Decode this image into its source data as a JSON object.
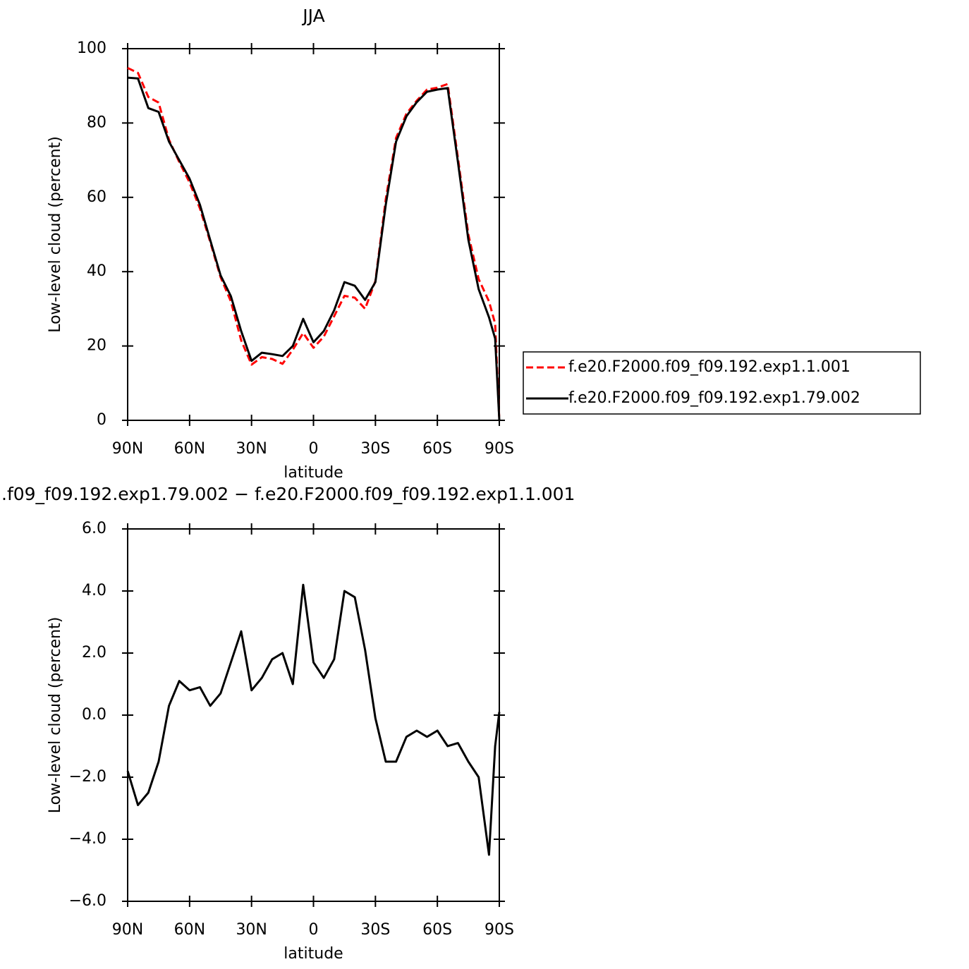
{
  "chart_data": [
    {
      "type": "line",
      "title": "JJA",
      "x_label": "latitude",
      "y_label": "Low-level cloud (percent)",
      "x": [
        90,
        85,
        80,
        75,
        70,
        65,
        60,
        55,
        50,
        45,
        40,
        35,
        30,
        25,
        20,
        15,
        10,
        5,
        0,
        -5,
        -10,
        -15,
        -20,
        -25,
        -30,
        -35,
        -40,
        -45,
        -50,
        -55,
        -60,
        -65,
        -70,
        -75,
        -80,
        -85,
        -88,
        -90
      ],
      "series": [
        {
          "name": "f.e20.F2000.f09_f09.192.exp1.1.001",
          "color": "#ff0000",
          "line_style": "dashed",
          "values": [
            94.8,
            93.5,
            87,
            85.5,
            75.5,
            69.5,
            64,
            57,
            48,
            38.5,
            32,
            21.5,
            15,
            17,
            16.5,
            15.2,
            19,
            23.5,
            19.5,
            22.5,
            28,
            33.5,
            33,
            30,
            37.5,
            59.5,
            76,
            82.5,
            86,
            89,
            89.5,
            90.5,
            70.5,
            50,
            38,
            32,
            26,
            0
          ]
        },
        {
          "name": "f.e20.F2000.f09_f09.192.exp1.79.002",
          "color": "#000000",
          "line_style": "solid",
          "values": [
            92.2,
            92,
            84,
            83,
            75,
            70,
            65,
            58,
            48.5,
            39,
            33.4,
            24,
            16,
            18.2,
            17.8,
            17.3,
            20,
            27.3,
            21,
            24,
            29.6,
            37.2,
            36.2,
            32.4,
            37.2,
            58,
            75,
            81.8,
            85.6,
            88.4,
            89,
            89.4,
            69.4,
            48.6,
            35.3,
            27.7,
            22,
            0
          ]
        }
      ],
      "xlim": [
        90,
        -90
      ],
      "xticks": [
        {
          "value": 90,
          "label": "90N"
        },
        {
          "value": 60,
          "label": "60N"
        },
        {
          "value": 30,
          "label": "30N"
        },
        0,
        {
          "value": -30,
          "label": "30S"
        },
        {
          "value": -60,
          "label": "60S"
        },
        {
          "value": -90,
          "label": "90S"
        }
      ],
      "ylim": [
        0,
        100
      ],
      "yticks": [
        0,
        20,
        40,
        60,
        80,
        100
      ],
      "legend": "right"
    },
    {
      "type": "line",
      "title": ".f09_f09.192.exp1.79.002 − f.e20.F2000.f09_f09.192.exp1.1.001",
      "x_label": "latitude",
      "y_label": "Low-level cloud (percent)",
      "x": [
        90,
        85,
        80,
        75,
        70,
        65,
        60,
        55,
        50,
        45,
        40,
        35,
        30,
        25,
        20,
        15,
        10,
        5,
        0,
        -5,
        -10,
        -15,
        -20,
        -25,
        -30,
        -35,
        -40,
        -45,
        -50,
        -55,
        -60,
        -65,
        -70,
        -75,
        -80,
        -85,
        -88,
        -90
      ],
      "values": [
        -1.8,
        -2.9,
        -2.5,
        -1.5,
        0.3,
        1.1,
        0.8,
        0.9,
        0.3,
        0.7,
        1.7,
        2.7,
        0.8,
        1.2,
        1.8,
        2.0,
        1.0,
        4.2,
        1.7,
        1.2,
        1.8,
        4.0,
        3.8,
        2.1,
        -0.1,
        -1.5,
        -1.5,
        -0.7,
        -0.5,
        -0.7,
        -0.5,
        -1.0,
        -0.9,
        -1.5,
        -2.0,
        -4.5,
        -1.0,
        0.1
      ],
      "color": "#000000",
      "xlim": [
        90,
        -90
      ],
      "xticks": [
        {
          "value": 90,
          "label": "90N"
        },
        {
          "value": 60,
          "label": "60N"
        },
        {
          "value": 30,
          "label": "30N"
        },
        0,
        {
          "value": -30,
          "label": "30S"
        },
        {
          "value": -60,
          "label": "60S"
        },
        {
          "value": -90,
          "label": "90S"
        }
      ],
      "ylim": [
        -6,
        6
      ],
      "yticks": [
        {
          "value": -6,
          "label": "−6.0"
        },
        {
          "value": -4,
          "label": "−4.0"
        },
        {
          "value": -2,
          "label": "−2.0"
        },
        {
          "value": 0,
          "label": "0.0"
        },
        {
          "value": 2,
          "label": "2.0"
        },
        {
          "value": 4,
          "label": "4.0"
        },
        {
          "value": 6,
          "label": "6.0"
        }
      ]
    }
  ]
}
